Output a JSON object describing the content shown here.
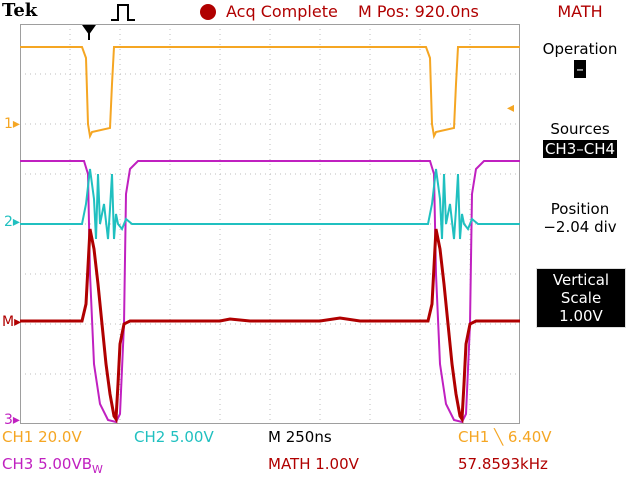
{
  "header": {
    "brand": "Tek",
    "acq_status": "Acq Complete",
    "mpos": "M Pos: 920.0ns",
    "menu_title": "MATH"
  },
  "side_menu": {
    "operation_label": "Operation",
    "operation_value": "–",
    "sources_label": "Sources",
    "sources_value": "CH3–CH4",
    "position_label": "Position",
    "position_value": "−2.04 div",
    "vscale_label_1": "Vertical",
    "vscale_label_2": "Scale",
    "vscale_value": "1.00V"
  },
  "markers": {
    "ch1": "1",
    "ch2": "2",
    "math": "M",
    "ch3": "3"
  },
  "readouts": {
    "ch1_scale": "CH1  20.0V",
    "ch2_scale": "CH2  5.00V",
    "timebase": "M 250ns",
    "trigger": "CH1 ╲ 6.40V",
    "ch3_scale": "CH3  5.00VB",
    "bw_suffix": "W",
    "math_scale": "MATH 1.00V",
    "frequency": "57.8593kHz"
  },
  "colors": {
    "ch1": "#f5a623",
    "ch2": "#20c0c0",
    "ch3": "#c020c0",
    "math": "#b00000"
  }
}
